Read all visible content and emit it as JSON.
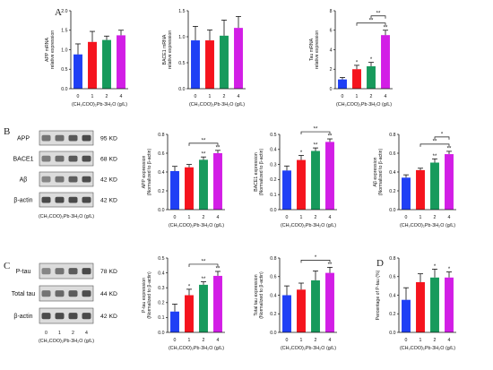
{
  "panel_letters": {
    "A": "A",
    "B": "B",
    "C": "C",
    "D": "D"
  },
  "blots": {
    "B": {
      "rows": [
        {
          "label": "APP",
          "kd": "95 KD",
          "intensity": [
            0.55,
            0.6,
            0.72,
            0.8
          ]
        },
        {
          "label": "BACE1",
          "kd": "68 KD",
          "intensity": [
            0.5,
            0.6,
            0.72,
            0.78
          ]
        },
        {
          "label": "Aβ",
          "kd": "42 KD",
          "intensity": [
            0.45,
            0.55,
            0.68,
            0.78
          ]
        },
        {
          "label": "β-actin",
          "kd": "42 KD",
          "intensity": [
            0.8,
            0.8,
            0.8,
            0.8
          ]
        }
      ],
      "lanes": [],
      "xlabel": "(CH₃COO)₂Pb·3H₂O (g/L)"
    },
    "C": {
      "rows": [
        {
          "label": "P-tau",
          "kd": "78 KD",
          "intensity": [
            0.45,
            0.55,
            0.7,
            0.8
          ]
        },
        {
          "label": "Total tau",
          "kd": "44 KD",
          "intensity": [
            0.55,
            0.62,
            0.7,
            0.78
          ]
        },
        {
          "label": "β-actin",
          "kd": "42 KD",
          "intensity": [
            0.8,
            0.8,
            0.8,
            0.8
          ]
        }
      ],
      "lanes": [
        "0",
        "1",
        "2",
        "4"
      ],
      "xlabel": "(CH₃COO)₂Pb·3H₂O (g/L)"
    }
  },
  "chart_data": [
    {
      "id": "app_mrna",
      "type": "bar",
      "categories": [
        "0",
        "1",
        "2",
        "4"
      ],
      "values": [
        0.88,
        1.2,
        1.25,
        1.37
      ],
      "errors": [
        0.27,
        0.27,
        0.1,
        0.13
      ],
      "ylabel": "APP mRNA\nrelative expression",
      "ylim": [
        0,
        2.0
      ],
      "yticks": [
        "0.0",
        "0.5",
        "1.0",
        "1.5",
        "2.0"
      ],
      "xlabel": "(CH₃COO)₂Pb·3H₂O (g/L)",
      "sig": [
        "",
        "",
        "",
        ""
      ],
      "brackets": [],
      "colors": [
        "#1f3ff5",
        "#f5141e",
        "#179a5c",
        "#d21ee6"
      ]
    },
    {
      "id": "bace1_mrna",
      "type": "bar",
      "categories": [
        "0",
        "1",
        "2",
        "4"
      ],
      "values": [
        0.93,
        0.93,
        1.02,
        1.17
      ],
      "errors": [
        0.27,
        0.2,
        0.3,
        0.22
      ],
      "ylabel": "BACE1 mRNA\nrelative expression",
      "ylim": [
        0,
        1.5
      ],
      "yticks": [
        "0.0",
        "0.5",
        "1.0",
        "1.5"
      ],
      "xlabel": "(CH₃COO)₂Pb·3H₂O (g/L)",
      "sig": [
        "",
        "",
        "",
        ""
      ],
      "brackets": [],
      "colors": [
        "#1f3ff5",
        "#f5141e",
        "#179a5c",
        "#d21ee6"
      ]
    },
    {
      "id": "tau_mrna",
      "type": "bar",
      "categories": [
        "0",
        "1",
        "2",
        "4"
      ],
      "values": [
        0.95,
        2.0,
        2.3,
        5.5
      ],
      "errors": [
        0.2,
        0.4,
        0.4,
        0.5
      ],
      "ylabel": "Tau mRNA\nrelative expression",
      "ylim": [
        0,
        8
      ],
      "yticks": [
        "0",
        "2",
        "4",
        "6",
        "8"
      ],
      "xlabel": "(CH₃COO)₂Pb·3H₂O (g/L)",
      "sig": [
        "",
        "*",
        "*",
        "**"
      ],
      "brackets": [
        {
          "from": 1,
          "to": 3,
          "label": "**"
        },
        {
          "from": 2,
          "to": 3,
          "label": "**"
        }
      ],
      "colors": [
        "#1f3ff5",
        "#f5141e",
        "#179a5c",
        "#d21ee6"
      ]
    },
    {
      "id": "app_protein",
      "type": "bar",
      "categories": [
        "0",
        "1",
        "2",
        "4"
      ],
      "values": [
        0.41,
        0.45,
        0.53,
        0.6
      ],
      "errors": [
        0.05,
        0.03,
        0.03,
        0.03
      ],
      "ylabel": "APP expression\n(Normalized to β-actin)",
      "ylim": [
        0,
        0.8
      ],
      "yticks": [
        "0.0",
        "0.2",
        "0.4",
        "0.6",
        "0.8"
      ],
      "xlabel": "(CH₃COO)₂Pb·3H₂O (g/L)",
      "sig": [
        "",
        "",
        "**",
        "**"
      ],
      "brackets": [
        {
          "from": 1,
          "to": 3,
          "label": "**"
        }
      ],
      "colors": [
        "#1f3ff5",
        "#f5141e",
        "#179a5c",
        "#d21ee6"
      ]
    },
    {
      "id": "bace1_protein",
      "type": "bar",
      "categories": [
        "0",
        "1",
        "2",
        "4"
      ],
      "values": [
        0.26,
        0.33,
        0.39,
        0.45
      ],
      "errors": [
        0.03,
        0.03,
        0.02,
        0.02
      ],
      "ylabel": "BACE1 expression\n(Normalized to β-actin)",
      "ylim": [
        0,
        0.5
      ],
      "yticks": [
        "0.0",
        "0.1",
        "0.2",
        "0.3",
        "0.4",
        "0.5"
      ],
      "xlabel": "(CH₃COO)₂Pb·3H₂O (g/L)",
      "sig": [
        "",
        "*",
        "**",
        "**"
      ],
      "brackets": [
        {
          "from": 1,
          "to": 3,
          "label": "**"
        }
      ],
      "colors": [
        "#1f3ff5",
        "#f5141e",
        "#179a5c",
        "#d21ee6"
      ]
    },
    {
      "id": "abeta_protein",
      "type": "bar",
      "categories": [
        "0",
        "1",
        "2",
        "4"
      ],
      "values": [
        0.34,
        0.42,
        0.5,
        0.59
      ],
      "errors": [
        0.03,
        0.02,
        0.04,
        0.03
      ],
      "ylabel": "Aβ expression\n(Normalized to β-actin)",
      "ylim": [
        0,
        0.8
      ],
      "yticks": [
        "0.0",
        "0.2",
        "0.4",
        "0.6",
        "0.8"
      ],
      "xlabel": "(CH₃COO)₂Pb·3H₂O (g/L)",
      "sig": [
        "",
        "",
        "**",
        "**"
      ],
      "brackets": [
        {
          "from": 1,
          "to": 3,
          "label": "**"
        },
        {
          "from": 2,
          "to": 3,
          "label": "*"
        }
      ],
      "colors": [
        "#1f3ff5",
        "#f5141e",
        "#179a5c",
        "#d21ee6"
      ]
    },
    {
      "id": "ptau_protein",
      "type": "bar",
      "categories": [
        "0",
        "1",
        "2",
        "4"
      ],
      "values": [
        0.14,
        0.25,
        0.32,
        0.38
      ],
      "errors": [
        0.05,
        0.04,
        0.02,
        0.03
      ],
      "ylabel": "P-tau expression\n(Normalized to β-actin)",
      "ylim": [
        0,
        0.5
      ],
      "yticks": [
        "0.0",
        "0.1",
        "0.2",
        "0.3",
        "0.4",
        "0.5"
      ],
      "xlabel": "(CH₃COO)₂Pb·3H₂O (g/L)",
      "sig": [
        "",
        "*",
        "**",
        "**"
      ],
      "brackets": [
        {
          "from": 1,
          "to": 3,
          "label": "**"
        }
      ],
      "colors": [
        "#1f3ff5",
        "#f5141e",
        "#179a5c",
        "#d21ee6"
      ]
    },
    {
      "id": "totaltau_protein",
      "type": "bar",
      "categories": [
        "0",
        "1",
        "2",
        "4"
      ],
      "values": [
        0.4,
        0.46,
        0.56,
        0.64
      ],
      "errors": [
        0.1,
        0.07,
        0.1,
        0.06
      ],
      "ylabel": "Total tau expression\n(Normalized to β-actin)",
      "ylim": [
        0,
        0.8
      ],
      "yticks": [
        "0.0",
        "0.2",
        "0.4",
        "0.6",
        "0.8"
      ],
      "xlabel": "(CH₃COO)₂Pb·3H₂O (g/L)",
      "sig": [
        "",
        "",
        "",
        "**"
      ],
      "brackets": [
        {
          "from": 1,
          "to": 3,
          "label": "*"
        }
      ],
      "colors": [
        "#1f3ff5",
        "#f5141e",
        "#179a5c",
        "#d21ee6"
      ]
    },
    {
      "id": "ptau_percentage",
      "type": "bar",
      "categories": [
        "0",
        "1",
        "2",
        "4"
      ],
      "values": [
        0.35,
        0.54,
        0.59,
        0.59
      ],
      "errors": [
        0.13,
        0.09,
        0.09,
        0.06
      ],
      "ylabel": "Percentage of P-tau (%)",
      "ylim": [
        0,
        0.8
      ],
      "yticks": [
        "0.0",
        "0.2",
        "0.4",
        "0.6",
        "0.8"
      ],
      "xlabel": "(CH₃COO)₂Pb·3H₂O (g/L)",
      "sig": [
        "",
        "",
        "*",
        "*"
      ],
      "brackets": [],
      "colors": [
        "#1f3ff5",
        "#f5141e",
        "#179a5c",
        "#d21ee6"
      ]
    }
  ]
}
